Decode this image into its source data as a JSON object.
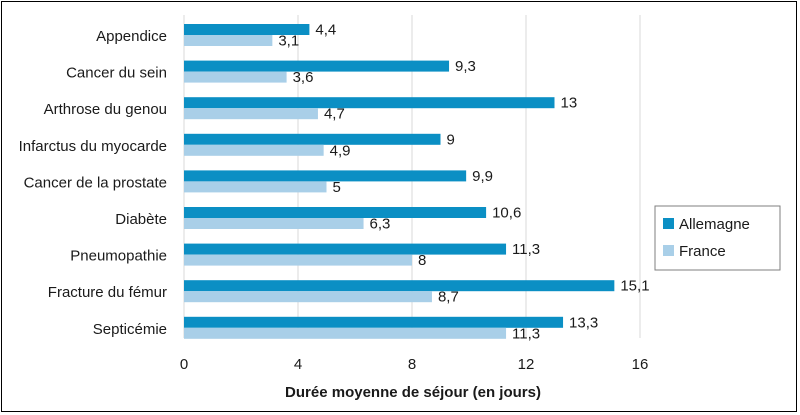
{
  "chart_data": {
    "type": "bar",
    "orientation": "horizontal",
    "categories": [
      "Appendice",
      "Cancer du sein",
      "Arthrose du genou",
      "Infarctus du myocarde",
      "Cancer de la prostate",
      "Diabète",
      "Pneumopathie",
      "Fracture du fémur",
      "Septicémie"
    ],
    "series": [
      {
        "name": "Allemagne",
        "color": "#0b8fc4",
        "values": [
          4.4,
          9.3,
          13,
          9,
          9.9,
          10.6,
          11.3,
          15.1,
          13.3
        ],
        "labels": [
          "4,4",
          "9,3",
          "13",
          "9",
          "9,9",
          "10,6",
          "11,3",
          "15,1",
          "13,3"
        ]
      },
      {
        "name": "France",
        "color": "#a9cfe8",
        "values": [
          3.1,
          3.6,
          4.7,
          4.9,
          5,
          6.3,
          8,
          8.7,
          11.3
        ],
        "labels": [
          "3,1",
          "3,6",
          "4,7",
          "4,9",
          "5",
          "6,3",
          "8",
          "8,7",
          "11,3"
        ]
      }
    ],
    "xlabel": "Durée moyenne de séjour (en jours)",
    "ylabel": "",
    "title": "",
    "xlim": [
      0,
      16
    ],
    "xticks": [
      0,
      4,
      8,
      12,
      16
    ],
    "xtick_labels": [
      "0",
      "4",
      "8",
      "12",
      "16"
    ],
    "grid": "vertical",
    "grid_color": "#d9d9d9",
    "legend_position": "right"
  }
}
